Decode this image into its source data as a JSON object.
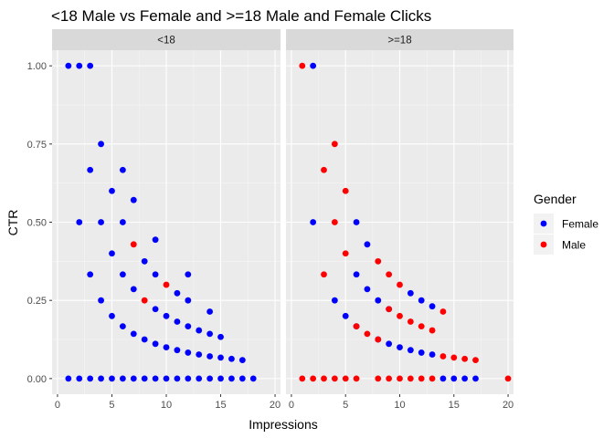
{
  "chart_data": {
    "type": "scatter",
    "title": "<18 Male vs Female and >=18 Male and Female Clicks",
    "xlabel": "Impressions",
    "ylabel": "CTR",
    "xlim": [
      -0.5,
      20.5
    ],
    "ylim": [
      -0.05,
      1.05
    ],
    "x_ticks": [
      0,
      5,
      10,
      15,
      20
    ],
    "x_tick_labels": [
      "0",
      "5",
      "10",
      "15",
      "20"
    ],
    "y_ticks": [
      0,
      0.25,
      0.5,
      0.75,
      1.0
    ],
    "y_tick_labels": [
      "0.00",
      "0.25",
      "0.50",
      "0.75",
      "1.00"
    ],
    "grid": true,
    "legend": {
      "title": "Gender",
      "placement": "right",
      "entries": [
        {
          "name": "Female",
          "color": "#0000ff"
        },
        {
          "name": "Male",
          "color": "#ff0000"
        }
      ]
    },
    "facets": [
      {
        "label": "<18",
        "series": [
          {
            "name": "Female",
            "color": "#0000ff",
            "points": [
              [
                1,
                1
              ],
              [
                2,
                1
              ],
              [
                3,
                1
              ],
              [
                2,
                0.5
              ],
              [
                3,
                0.667
              ],
              [
                3,
                0.333
              ],
              [
                4,
                0.75
              ],
              [
                4,
                0.5
              ],
              [
                4,
                0.25
              ],
              [
                5,
                0.6
              ],
              [
                5,
                0.4
              ],
              [
                5,
                0.2
              ],
              [
                6,
                0.667
              ],
              [
                6,
                0.5
              ],
              [
                6,
                0.333
              ],
              [
                6,
                0.167
              ],
              [
                7,
                0.571
              ],
              [
                7,
                0.286
              ],
              [
                7,
                0.143
              ],
              [
                8,
                0.375
              ],
              [
                8,
                0.125
              ],
              [
                9,
                0.444
              ],
              [
                9,
                0.333
              ],
              [
                9,
                0.222
              ],
              [
                9,
                0.111
              ],
              [
                10,
                0.2
              ],
              [
                10,
                0.1
              ],
              [
                11,
                0.273
              ],
              [
                11,
                0.182
              ],
              [
                11,
                0.091
              ],
              [
                12,
                0.333
              ],
              [
                12,
                0.25
              ],
              [
                12,
                0.167
              ],
              [
                12,
                0.083
              ],
              [
                13,
                0.154
              ],
              [
                13,
                0.077
              ],
              [
                14,
                0.214
              ],
              [
                14,
                0.143
              ],
              [
                14,
                0.071
              ],
              [
                15,
                0.133
              ],
              [
                15,
                0.067
              ],
              [
                16,
                0.063
              ],
              [
                17,
                0.059
              ],
              [
                1,
                0
              ],
              [
                2,
                0
              ],
              [
                3,
                0
              ],
              [
                4,
                0
              ],
              [
                5,
                0
              ],
              [
                6,
                0
              ],
              [
                7,
                0
              ],
              [
                8,
                0
              ],
              [
                9,
                0
              ],
              [
                10,
                0
              ],
              [
                11,
                0
              ],
              [
                12,
                0
              ],
              [
                13,
                0
              ],
              [
                14,
                0
              ],
              [
                15,
                0
              ],
              [
                16,
                0
              ],
              [
                17,
                0
              ],
              [
                18,
                0
              ]
            ]
          },
          {
            "name": "Male",
            "color": "#ff0000",
            "points": [
              [
                7,
                0.429
              ],
              [
                8,
                0.25
              ],
              [
                10,
                0.3
              ]
            ]
          }
        ]
      },
      {
        "label": ">=18",
        "series": [
          {
            "name": "Female",
            "color": "#0000ff",
            "points": [
              [
                2,
                1
              ],
              [
                2,
                0.5
              ],
              [
                4,
                0.25
              ],
              [
                5,
                0.2
              ],
              [
                6,
                0.5
              ],
              [
                6,
                0.333
              ],
              [
                6,
                0.167
              ],
              [
                7,
                0.429
              ],
              [
                7,
                0.286
              ],
              [
                8,
                0.25
              ],
              [
                8,
                0.125
              ],
              [
                9,
                0.222
              ],
              [
                9,
                0.111
              ],
              [
                10,
                0.1
              ],
              [
                11,
                0.273
              ],
              [
                11,
                0.091
              ],
              [
                12,
                0.25
              ],
              [
                12,
                0.083
              ],
              [
                13,
                0.231
              ],
              [
                13,
                0.077
              ],
              [
                14,
                0
              ],
              [
                15,
                0
              ],
              [
                16,
                0
              ],
              [
                17,
                0
              ]
            ]
          },
          {
            "name": "Male",
            "color": "#ff0000",
            "points": [
              [
                1,
                1
              ],
              [
                3,
                0.667
              ],
              [
                3,
                0.333
              ],
              [
                4,
                0.75
              ],
              [
                4,
                0.5
              ],
              [
                5,
                0.6
              ],
              [
                5,
                0.4
              ],
              [
                6,
                0.167
              ],
              [
                7,
                0.143
              ],
              [
                8,
                0.375
              ],
              [
                8,
                0.125
              ],
              [
                9,
                0.333
              ],
              [
                9,
                0.222
              ],
              [
                10,
                0.3
              ],
              [
                10,
                0.2
              ],
              [
                11,
                0.182
              ],
              [
                12,
                0.167
              ],
              [
                13,
                0.154
              ],
              [
                14,
                0.214
              ],
              [
                14,
                0.071
              ],
              [
                15,
                0.067
              ],
              [
                16,
                0.063
              ],
              [
                17,
                0.059
              ],
              [
                1,
                0
              ],
              [
                2,
                0
              ],
              [
                3,
                0
              ],
              [
                4,
                0
              ],
              [
                5,
                0
              ],
              [
                6,
                0
              ],
              [
                8,
                0
              ],
              [
                9,
                0
              ],
              [
                10,
                0
              ],
              [
                11,
                0
              ],
              [
                12,
                0
              ],
              [
                13,
                0
              ],
              [
                20,
                0
              ]
            ]
          }
        ]
      }
    ]
  }
}
